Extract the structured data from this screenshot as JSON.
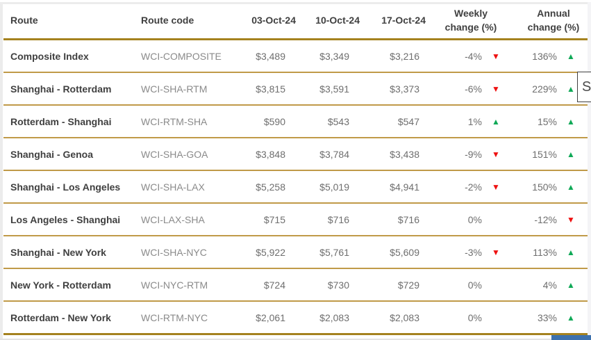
{
  "colors": {
    "gold_border_dark": "#a5821f",
    "gold_border_light": "#c09a48",
    "up_green": "#10a957",
    "down_red": "#ee1111",
    "header_text": "#404040",
    "route_text": "#404040",
    "code_text": "#8a8a8a",
    "value_text": "#6e6e6e",
    "blue_partial_element": "#3d71ad"
  },
  "icons": {
    "up_arrow": "▲",
    "down_arrow": "▼"
  },
  "tooltip": {
    "visible_text": "S"
  },
  "table": {
    "headers": [
      "Route",
      "Route code",
      "03-Oct-24",
      "10-Oct-24",
      "17-Oct-24",
      "Weekly change (%)",
      "Annual change (%)"
    ],
    "rows": [
      {
        "route": "Composite Index",
        "route_code": "WCI-COMPOSITE",
        "rate_03_oct": "$3,489",
        "rate_10_oct": "$3,349",
        "rate_17_oct": "$3,216",
        "weekly_change": "-4%",
        "weekly_direction": "down",
        "annual_change": "136%",
        "annual_direction": "up"
      },
      {
        "route": "Shanghai - Rotterdam",
        "route_code": "WCI-SHA-RTM",
        "rate_03_oct": "$3,815",
        "rate_10_oct": "$3,591",
        "rate_17_oct": "$3,373",
        "weekly_change": "-6%",
        "weekly_direction": "down",
        "annual_change": "229%",
        "annual_direction": "up"
      },
      {
        "route": "Rotterdam - Shanghai",
        "route_code": "WCI-RTM-SHA",
        "rate_03_oct": "$590",
        "rate_10_oct": "$543",
        "rate_17_oct": "$547",
        "weekly_change": "1%",
        "weekly_direction": "up",
        "annual_change": "15%",
        "annual_direction": "up"
      },
      {
        "route": "Shanghai - Genoa",
        "route_code": "WCI-SHA-GOA",
        "rate_03_oct": "$3,848",
        "rate_10_oct": "$3,784",
        "rate_17_oct": "$3,438",
        "weekly_change": "-9%",
        "weekly_direction": "down",
        "annual_change": "151%",
        "annual_direction": "up"
      },
      {
        "route": "Shanghai - Los Angeles",
        "route_code": "WCI-SHA-LAX",
        "rate_03_oct": "$5,258",
        "rate_10_oct": "$5,019",
        "rate_17_oct": "$4,941",
        "weekly_change": "-2%",
        "weekly_direction": "down",
        "annual_change": "150%",
        "annual_direction": "up"
      },
      {
        "route": "Los Angeles - Shanghai",
        "route_code": "WCI-LAX-SHA",
        "rate_03_oct": "$715",
        "rate_10_oct": "$716",
        "rate_17_oct": "$716",
        "weekly_change": "0%",
        "weekly_direction": "none",
        "annual_change": "-12%",
        "annual_direction": "down"
      },
      {
        "route": "Shanghai - New York",
        "route_code": "WCI-SHA-NYC",
        "rate_03_oct": "$5,922",
        "rate_10_oct": "$5,761",
        "rate_17_oct": "$5,609",
        "weekly_change": "-3%",
        "weekly_direction": "down",
        "annual_change": "113%",
        "annual_direction": "up"
      },
      {
        "route": "New York - Rotterdam",
        "route_code": "WCI-NYC-RTM",
        "rate_03_oct": "$724",
        "rate_10_oct": "$730",
        "rate_17_oct": "$729",
        "weekly_change": "0%",
        "weekly_direction": "none",
        "annual_change": "4%",
        "annual_direction": "up"
      },
      {
        "route": "Rotterdam - New York",
        "route_code": "WCI-RTM-NYC",
        "rate_03_oct": "$2,061",
        "rate_10_oct": "$2,083",
        "rate_17_oct": "$2,083",
        "weekly_change": "0%",
        "weekly_direction": "none",
        "annual_change": "33%",
        "annual_direction": "up"
      }
    ]
  }
}
